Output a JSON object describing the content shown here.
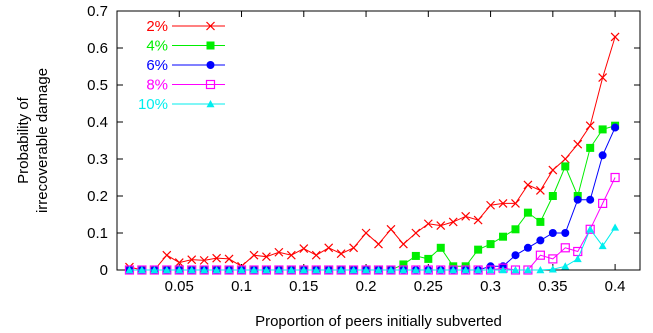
{
  "chart_data": {
    "type": "line",
    "xlabel": "Proportion of peers initially subverted",
    "ylabel_lines": [
      "Probability of",
      "irrecoverable damage"
    ],
    "xlim": [
      0,
      0.42
    ],
    "ylim": [
      0,
      0.7
    ],
    "xticks": [
      0.05,
      0.1,
      0.15,
      0.2,
      0.25,
      0.3,
      0.35,
      0.4
    ],
    "xtick_labels": [
      "0.05",
      "0.1",
      "0.15",
      "0.2",
      "0.25",
      "0.3",
      "0.35",
      "0.4"
    ],
    "yticks": [
      0,
      0.1,
      0.2,
      0.3,
      0.4,
      0.5,
      0.6,
      0.7
    ],
    "ytick_labels": [
      "0",
      "0.1",
      "0.2",
      "0.3",
      "0.4",
      "0.5",
      "0.6",
      "0.7"
    ],
    "grid": false,
    "legend_position": "top-left",
    "x": [
      0.01,
      0.02,
      0.03,
      0.04,
      0.05,
      0.06,
      0.07,
      0.08,
      0.09,
      0.1,
      0.11,
      0.12,
      0.13,
      0.14,
      0.15,
      0.16,
      0.17,
      0.18,
      0.19,
      0.2,
      0.21,
      0.22,
      0.23,
      0.24,
      0.25,
      0.26,
      0.27,
      0.28,
      0.29,
      0.3,
      0.31,
      0.32,
      0.33,
      0.34,
      0.35,
      0.36,
      0.37,
      0.38,
      0.39,
      0.4
    ],
    "series": [
      {
        "name": "2%",
        "color": "#ff0000",
        "marker": "x",
        "values": [
          0.008,
          0.0,
          0.0,
          0.04,
          0.02,
          0.028,
          0.026,
          0.032,
          0.03,
          0.01,
          0.04,
          0.036,
          0.048,
          0.04,
          0.058,
          0.04,
          0.06,
          0.044,
          0.06,
          0.1,
          0.07,
          0.11,
          0.07,
          0.1,
          0.125,
          0.12,
          0.13,
          0.145,
          0.135,
          0.175,
          0.18,
          0.18,
          0.23,
          0.215,
          0.27,
          0.3,
          0.34,
          0.39,
          0.52,
          0.63
        ]
      },
      {
        "name": "4%",
        "color": "#00ee00",
        "marker": "filled-square",
        "values": [
          0,
          0,
          0,
          0,
          0,
          0,
          0,
          0,
          0,
          0,
          0,
          0,
          0,
          0,
          0,
          0,
          0,
          0,
          0,
          0,
          0,
          0,
          0.015,
          0.038,
          0.03,
          0.06,
          0.01,
          0.01,
          0.055,
          0.07,
          0.09,
          0.11,
          0.155,
          0.13,
          0.2,
          0.28,
          0.2,
          0.33,
          0.38,
          0.39
        ]
      },
      {
        "name": "6%",
        "color": "#0000ff",
        "marker": "filled-circle",
        "values": [
          0,
          0,
          0,
          0,
          0,
          0,
          0,
          0,
          0,
          0,
          0,
          0,
          0,
          0,
          0,
          0,
          0,
          0,
          0,
          0,
          0,
          0,
          0,
          0,
          0,
          0,
          0,
          0,
          0,
          0.01,
          0.01,
          0.04,
          0.06,
          0.08,
          0.1,
          0.1,
          0.19,
          0.19,
          0.31,
          0.385
        ]
      },
      {
        "name": "8%",
        "color": "#ff00ff",
        "marker": "open-square",
        "values": [
          0,
          0,
          0,
          0,
          0,
          0,
          0,
          0,
          0,
          0,
          0,
          0,
          0,
          0,
          0,
          0,
          0,
          0,
          0,
          0,
          0,
          0,
          0,
          0,
          0,
          0,
          0,
          0,
          0,
          0,
          0.005,
          0.0,
          0.0,
          0.04,
          0.03,
          0.06,
          0.05,
          0.11,
          0.18,
          0.25
        ]
      },
      {
        "name": "10%",
        "color": "#00eeee",
        "marker": "filled-triangle",
        "values": [
          0,
          0,
          0,
          0,
          0,
          0,
          0,
          0,
          0,
          0,
          0,
          0,
          0,
          0,
          0,
          0,
          0,
          0,
          0,
          0,
          0,
          0,
          0,
          0,
          0,
          0,
          0,
          0,
          0,
          0,
          0,
          0,
          0,
          0,
          0.002,
          0.01,
          0.03,
          0.11,
          0.065,
          0.115
        ]
      }
    ]
  }
}
